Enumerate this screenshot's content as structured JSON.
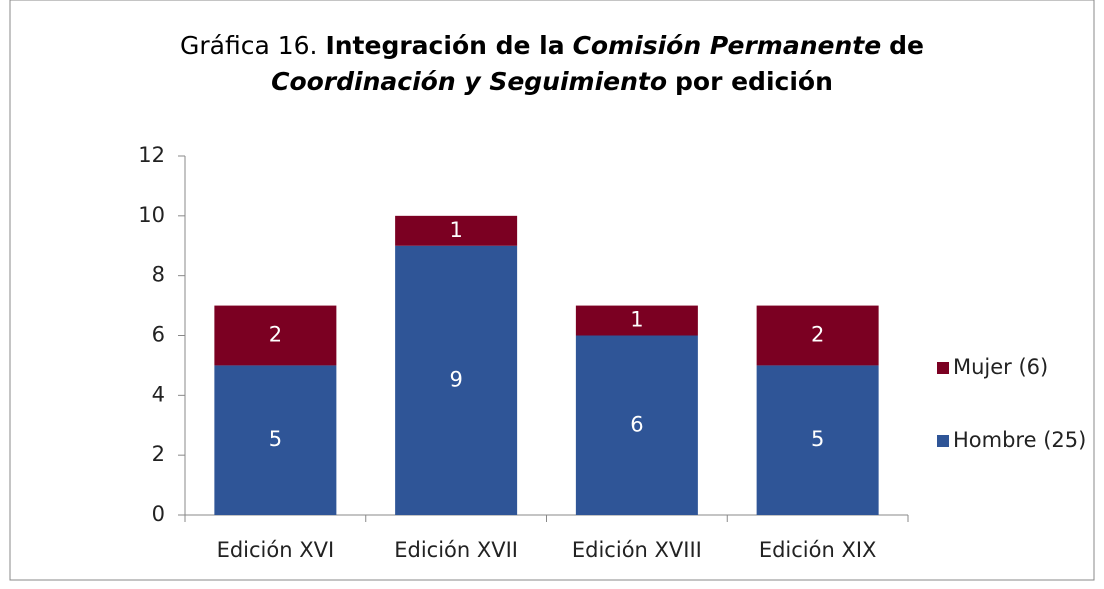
{
  "chart_data": {
    "type": "stacked_bar",
    "title_lines": [
      [
        {
          "text": "Gráfica 16.",
          "style": "normal"
        },
        {
          "text": "Integración de la",
          "style": "bold"
        },
        {
          "text": "Comisión Permanente",
          "style": "bold-italic"
        },
        {
          "text": "de",
          "style": "bold"
        }
      ],
      [
        {
          "text": "Coordinación y Seguimiento",
          "style": "bold-italic"
        },
        {
          "text": "por edición",
          "style": "bold"
        }
      ]
    ],
    "categories": [
      "Edición XVI",
      "Edición XVII",
      "Edición XVIII",
      "Edición XIX"
    ],
    "series": [
      {
        "name": "Hombre (25)",
        "color": "#2f5597",
        "values": [
          5,
          9,
          6,
          5
        ]
      },
      {
        "name": "Mujer (6)",
        "color": "#7b0022",
        "values": [
          2,
          1,
          1,
          2
        ]
      }
    ],
    "ylim": [
      0,
      12
    ],
    "yticks": [
      0,
      2,
      4,
      6,
      8,
      10,
      12
    ],
    "legend": "right"
  }
}
